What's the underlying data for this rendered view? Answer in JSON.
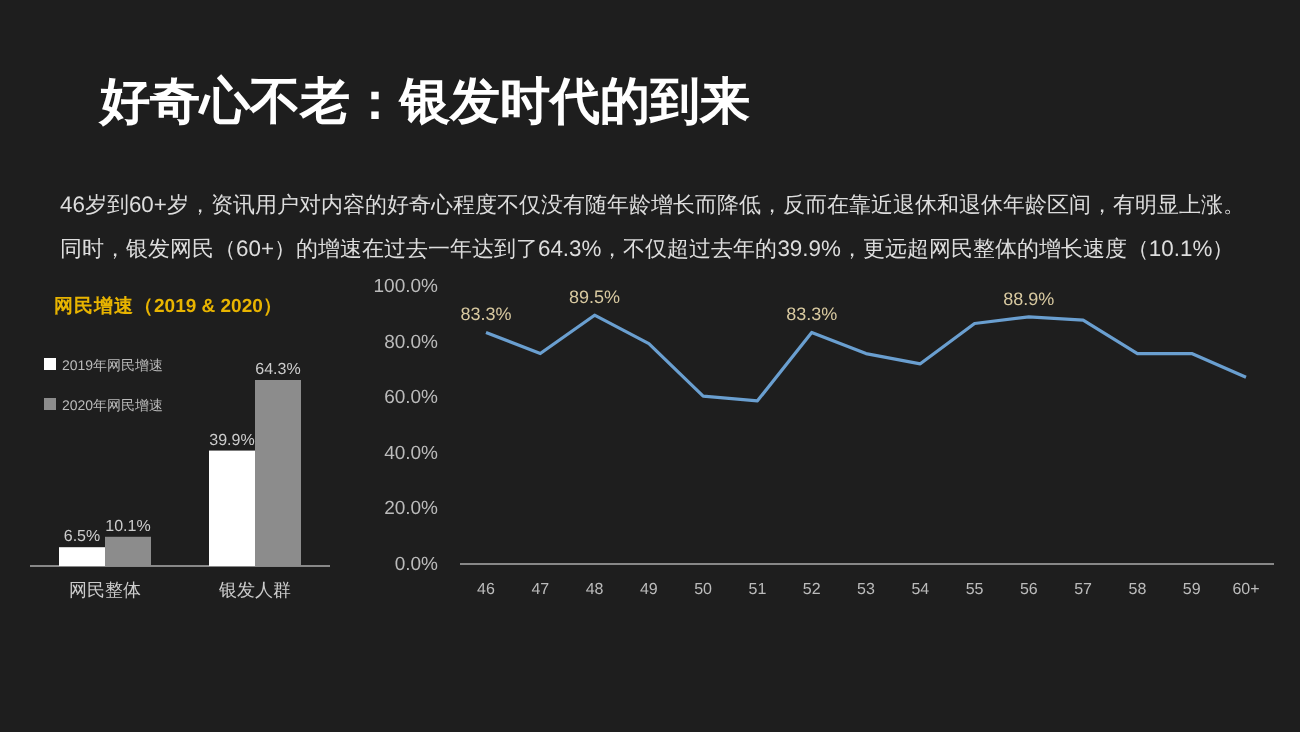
{
  "chart_data": [
    {
      "type": "bar",
      "title": "网民增速（2019 & 2020）",
      "categories": [
        "网民整体",
        "银发人群"
      ],
      "series": [
        {
          "name": "2019年网民增速",
          "color": "#ffffff",
          "values": [
            6.5,
            39.9
          ],
          "value_labels": [
            "6.5%",
            "39.9%"
          ]
        },
        {
          "name": "2020年网民增速",
          "color": "#8c8c8c",
          "values": [
            10.1,
            64.3
          ],
          "value_labels": [
            "10.1%",
            "64.3%"
          ]
        }
      ],
      "legend": "top left"
    },
    {
      "type": "line",
      "title": "好奇心不老：银发时代的到来",
      "subtitle": "46岁到60+岁，资讯用户对内容的好奇心程度不仅没有随年龄增长而降低，反而在靠近退休和退休年龄区间，有明显上涨。同时，银发网民（60+）的增速在过去一年达到了64.3%，不仅超过去年的39.9%，更远超网民整体的增长速度（10.1%）",
      "categories": [
        "46",
        "47",
        "48",
        "49",
        "50",
        "51",
        "52",
        "53",
        "54",
        "55",
        "56",
        "57",
        "58",
        "59",
        "60+"
      ],
      "series": [
        {
          "color": "#6a9fd0",
          "values": [
            83.3,
            75.7,
            89.5,
            79.3,
            60.4,
            58.7,
            83.3,
            75.7,
            72,
            86.5,
            88.9,
            87.7,
            75.7,
            75.7,
            67.2
          ],
          "value_labels": [
            "83.3%",
            null,
            "89.5%",
            null,
            null,
            null,
            "83.3%",
            null,
            null,
            null,
            "88.9%",
            null,
            null,
            null,
            null
          ]
        }
      ],
      "ylim": [
        0,
        100
      ],
      "yticks": [
        {
          "value": 0,
          "label": "0.0%"
        },
        {
          "value": 20,
          "label": "20.0%"
        },
        {
          "value": 40,
          "label": "40.0%"
        },
        {
          "value": 60,
          "label": "60.0%"
        },
        {
          "value": 80,
          "label": "80.0%"
        },
        {
          "value": 100,
          "label": "100.0%"
        }
      ],
      "grid": false,
      "marker": "none",
      "line_style": "solid"
    }
  ]
}
